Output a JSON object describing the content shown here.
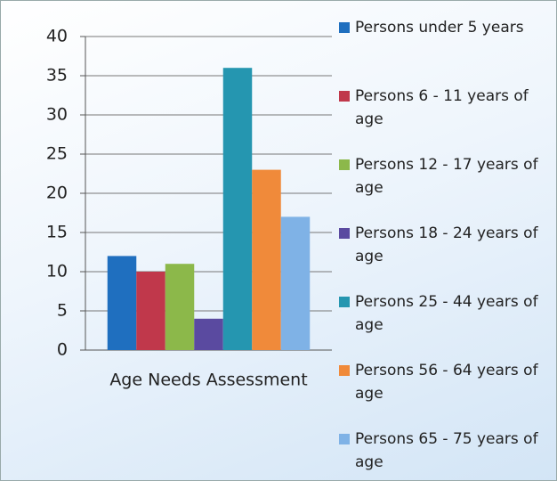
{
  "chart_data": {
    "type": "bar",
    "categories": [
      "Age Needs Assessment"
    ],
    "series": [
      {
        "name": "Persons under 5 years",
        "color": "#1f6fbf",
        "values": [
          12
        ]
      },
      {
        "name": "Persons 6 - 11 years of age",
        "color": "#c0384b",
        "values": [
          10
        ]
      },
      {
        "name": "Persons 12 - 17 years of age",
        "color": "#8cb84a",
        "values": [
          11
        ]
      },
      {
        "name": "Persons 18 - 24 years of age",
        "color": "#5a4aa0",
        "values": [
          4
        ]
      },
      {
        "name": "Persons 25 - 44 years of age",
        "color": "#2596b0",
        "values": [
          36
        ]
      },
      {
        "name": "Persons 56 - 64 years of age",
        "color": "#f08a3a",
        "values": [
          23
        ]
      },
      {
        "name": "Persons 65 - 75 years of age",
        "color": "#7fb2e6",
        "values": [
          17
        ]
      }
    ],
    "ylim": [
      0,
      40
    ],
    "yticks": [
      0,
      5,
      10,
      15,
      20,
      25,
      30,
      35,
      40
    ],
    "grid": true,
    "legend": "right"
  }
}
